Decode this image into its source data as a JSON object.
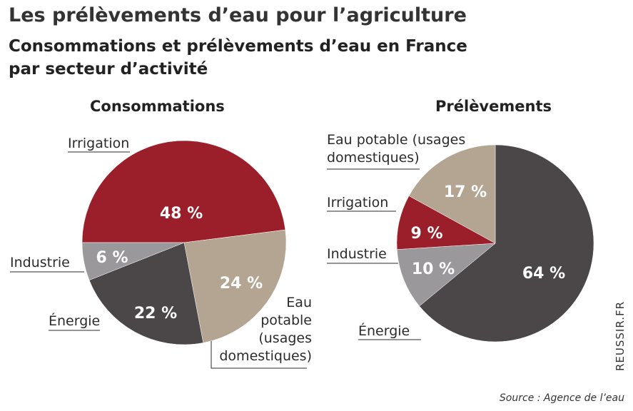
{
  "title": "Les prélèvements d’eau pour l’agriculture",
  "subtitle_line1": "Consommations et prélèvements d’eau en France",
  "subtitle_line2": "par secteur d’activité",
  "source": "Source : Agence de l’eau",
  "credit": "REUSSIR.FR",
  "colors": {
    "irrigation": "#9b1f2a",
    "eau_potable": "#b3a592",
    "industrie": "#9a989b",
    "energie": "#4b4648"
  },
  "chart_data": [
    {
      "type": "pie",
      "title": "Consommations",
      "slices": [
        {
          "key": "irrigation",
          "label": "Irrigation",
          "value": 48,
          "pct_label": "48 %"
        },
        {
          "key": "eau_potable",
          "label": "Eau potable (usages domestiques)",
          "label_lines": [
            "Eau",
            "potable",
            "(usages",
            "domestiques)"
          ],
          "value": 24,
          "pct_label": "24 %"
        },
        {
          "key": "energie",
          "label": "Énergie",
          "value": 22,
          "pct_label": "22 %"
        },
        {
          "key": "industrie",
          "label": "Industrie",
          "value": 6,
          "pct_label": "6 %"
        }
      ]
    },
    {
      "type": "pie",
      "title": "Prélèvements",
      "slices": [
        {
          "key": "energie",
          "label": "Énergie",
          "value": 64,
          "pct_label": "64 %"
        },
        {
          "key": "industrie",
          "label": "Industrie",
          "value": 10,
          "pct_label": "10 %"
        },
        {
          "key": "irrigation",
          "label": "Irrigation",
          "value": 9,
          "pct_label": "9 %"
        },
        {
          "key": "eau_potable",
          "label": "Eau potable (usages domestiques)",
          "label_lines": [
            "Eau potable (usages",
            "domestiques)"
          ],
          "value": 17,
          "pct_label": "17 %"
        }
      ]
    }
  ]
}
